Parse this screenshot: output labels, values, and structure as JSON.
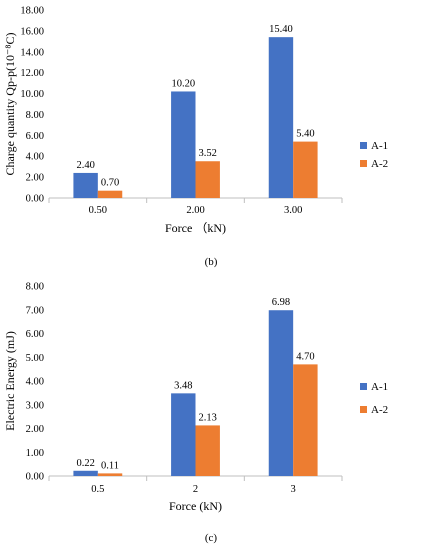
{
  "colors": {
    "A-1": "#4472C4",
    "A-2": "#ED7D31",
    "axis": "#BFBFBF",
    "text": "#000000"
  },
  "chart_data": [
    {
      "type": "bar",
      "caption": "(b)",
      "ylabel": "Charge quantity Qp-p(10⁻⁸C)",
      "xlabel": "Force （kN)",
      "categories": [
        "0.50",
        "2.00",
        "3.00"
      ],
      "ylim": [
        0,
        18
      ],
      "yticks": [
        "0.00",
        "2.00",
        "4.00",
        "6.00",
        "8.00",
        "10.00",
        "12.00",
        "14.00",
        "16.00",
        "18.00"
      ],
      "series": [
        {
          "name": "A-1",
          "values": [
            2.4,
            10.2,
            15.4
          ],
          "labels": [
            "2.40",
            "10.20",
            "15.40"
          ]
        },
        {
          "name": "A-2",
          "values": [
            0.7,
            3.52,
            5.4
          ],
          "labels": [
            "0.70",
            "3.52",
            "5.40"
          ]
        }
      ],
      "legend": "right",
      "grid": false
    },
    {
      "type": "bar",
      "caption": "(c)",
      "ylabel": "Electric Energy (mJ)",
      "xlabel": "Force (kN)",
      "categories": [
        "0.5",
        "2",
        "3"
      ],
      "ylim": [
        0,
        8
      ],
      "yticks": [
        "0.00",
        "1.00",
        "2.00",
        "3.00",
        "4.00",
        "5.00",
        "6.00",
        "7.00",
        "8.00"
      ],
      "series": [
        {
          "name": "A-1",
          "values": [
            0.22,
            3.48,
            6.98
          ],
          "labels": [
            "0.22",
            "3.48",
            "6.98"
          ]
        },
        {
          "name": "A-2",
          "values": [
            0.11,
            2.13,
            4.7
          ],
          "labels": [
            "0.11",
            "2.13",
            "4.70"
          ]
        }
      ],
      "legend": "right",
      "grid": false
    }
  ]
}
